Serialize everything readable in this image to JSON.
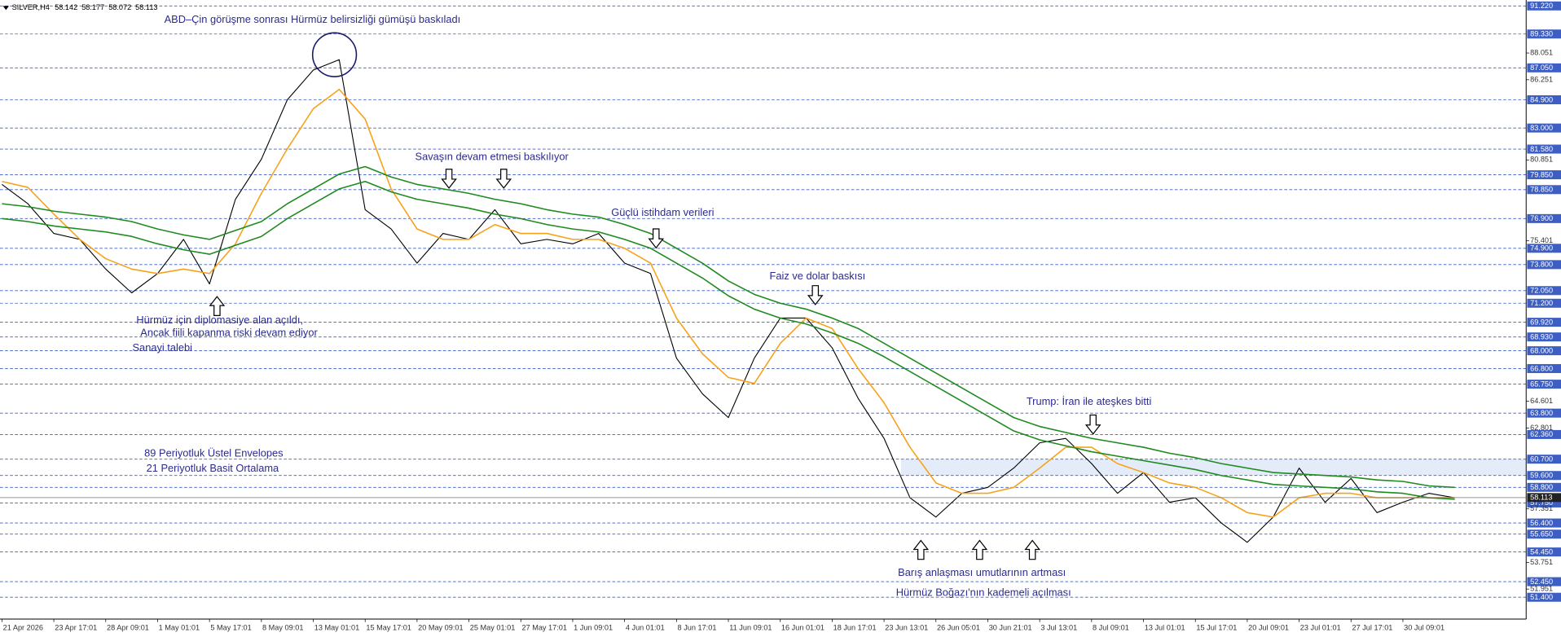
{
  "chart_data": {
    "type": "line",
    "symbol": "SILVER,H4",
    "ohlc": [
      58.142,
      58.177,
      58.072,
      58.113
    ],
    "x": [
      0,
      8,
      16,
      24,
      32,
      40,
      48,
      56,
      64,
      72,
      80,
      88,
      96,
      104,
      112,
      120,
      128,
      136,
      144,
      152,
      160,
      168,
      176,
      184,
      192,
      200,
      208,
      216,
      224,
      232,
      240,
      248,
      256,
      264,
      272,
      280,
      288,
      296,
      304,
      312,
      320,
      328,
      336,
      344,
      352,
      360,
      368,
      376,
      384,
      392,
      400,
      408,
      416,
      424,
      432,
      440,
      448
    ],
    "series": [
      {
        "color": "#000000",
        "values": [
          79.2,
          77.9,
          75.9,
          75.5,
          73.5,
          71.9,
          73.2,
          75.5,
          72.5,
          78.2,
          80.9,
          84.9,
          86.9,
          87.6,
          77.5,
          76.2,
          73.9,
          75.9,
          75.5,
          77.5,
          75.2,
          75.5,
          75.2,
          75.9,
          73.9,
          73.2,
          67.5,
          65.1,
          63.5,
          67.5,
          70.2,
          70.2,
          68.2,
          64.8,
          62.1,
          58.1,
          56.8,
          58.4,
          58.8,
          60.1,
          61.8,
          62.1,
          60.4,
          58.4,
          59.8,
          57.8,
          58.1,
          56.4,
          55.1,
          56.8,
          60.1,
          57.8,
          59.4,
          57.1,
          57.8,
          58.4,
          58.1
        ]
      },
      {
        "color": "#f7a21b",
        "values": [
          79.4,
          79.0,
          77.2,
          75.5,
          74.2,
          73.5,
          73.2,
          73.5,
          73.2,
          75.2,
          78.6,
          81.6,
          84.3,
          85.6,
          83.6,
          78.9,
          76.2,
          75.5,
          75.5,
          76.5,
          75.9,
          75.9,
          75.5,
          75.5,
          74.9,
          73.9,
          70.2,
          67.8,
          66.2,
          65.8,
          68.5,
          70.2,
          69.5,
          66.8,
          64.5,
          61.5,
          59.1,
          58.4,
          58.4,
          58.8,
          60.1,
          61.5,
          61.5,
          60.4,
          59.8,
          59.1,
          58.8,
          58.1,
          57.1,
          56.8,
          58.1,
          58.4,
          58.4,
          58.1,
          58.1,
          58.1,
          58.1
        ]
      },
      {
        "color": "#1f8a1f",
        "values": [
          77.9,
          77.7,
          77.4,
          77.2,
          77.0,
          76.7,
          76.2,
          75.8,
          75.5,
          76.1,
          76.7,
          77.9,
          78.9,
          79.9,
          80.4,
          79.7,
          79.2,
          78.9,
          78.6,
          78.2,
          77.9,
          77.5,
          77.2,
          77.0,
          76.5,
          75.9,
          74.9,
          73.9,
          72.7,
          71.8,
          71.2,
          70.8,
          70.2,
          69.5,
          68.5,
          67.5,
          66.5,
          65.5,
          64.5,
          63.5,
          62.9,
          62.5,
          62.1,
          61.8,
          61.5,
          61.1,
          60.8,
          60.4,
          60.1,
          59.8,
          59.7,
          59.6,
          59.5,
          59.3,
          59.2,
          58.9,
          58.8
        ]
      },
      {
        "color": "#1f8a1f",
        "values": [
          76.9,
          76.7,
          76.4,
          76.2,
          76.0,
          75.7,
          75.2,
          74.8,
          74.5,
          75.1,
          75.7,
          76.9,
          77.9,
          78.9,
          79.4,
          78.7,
          78.2,
          77.9,
          77.6,
          77.2,
          76.9,
          76.5,
          76.2,
          76.0,
          75.5,
          74.9,
          73.9,
          72.9,
          71.7,
          70.8,
          70.2,
          69.8,
          69.2,
          68.5,
          67.6,
          66.6,
          65.6,
          64.6,
          63.6,
          62.6,
          62.0,
          61.6,
          61.2,
          60.9,
          60.6,
          60.3,
          60.0,
          59.6,
          59.3,
          59.0,
          58.9,
          58.8,
          58.7,
          58.5,
          58.4,
          58.1,
          58.0
        ]
      }
    ],
    "xlim": [
      -0.6,
      470
    ],
    "ylim": [
      49.93,
      91.62
    ],
    "xticks": [
      {
        "value": 0,
        "label": "21 Apr 2026"
      },
      {
        "value": 16,
        "label": "23 Apr 17:01"
      },
      {
        "value": 32,
        "label": "28 Apr 09:01"
      },
      {
        "value": 48,
        "label": "1 May 01:01"
      },
      {
        "value": 64,
        "label": "5 May 17:01"
      },
      {
        "value": 80,
        "label": "8 May 09:01"
      },
      {
        "value": 96,
        "label": "13 May 01:01"
      },
      {
        "value": 112,
        "label": "15 May 17:01"
      },
      {
        "value": 128,
        "label": "20 May 09:01"
      },
      {
        "value": 144,
        "label": "25 May 01:01"
      },
      {
        "value": 160,
        "label": "27 May 17:01"
      },
      {
        "value": 176,
        "label": "1 Jun 09:01"
      },
      {
        "value": 192,
        "label": "4 Jun 01:01"
      },
      {
        "value": 208,
        "label": "8 Jun 17:01"
      },
      {
        "value": 224,
        "label": "11 Jun 09:01"
      },
      {
        "value": 240,
        "label": "16 Jun 01:01"
      },
      {
        "value": 256,
        "label": "18 Jun 17:01"
      },
      {
        "value": 272,
        "label": "23 Jun 13:01"
      },
      {
        "value": 288,
        "label": "26 Jun 05:01"
      },
      {
        "value": 304,
        "label": "30 Jun 21:01"
      },
      {
        "value": 320,
        "label": "3 Jul 13:01"
      },
      {
        "value": 336,
        "label": "8 Jul 09:01"
      },
      {
        "value": 352,
        "label": "13 Jul 01:01"
      },
      {
        "value": 368,
        "label": "15 Jul 17:01"
      },
      {
        "value": 384,
        "label": "20 Jul 09:01"
      },
      {
        "value": 400,
        "label": "23 Jul 01:01"
      },
      {
        "value": 416,
        "label": "27 Jul 17:01"
      },
      {
        "value": 432,
        "label": "30 Jul 09:01"
      }
    ],
    "yticks": [
      88.051,
      86.251,
      80.851,
      75.401,
      64.601,
      62.801,
      57.351,
      53.751,
      51.951
    ],
    "levels": [
      {
        "value": 91.22,
        "label": "91.220"
      },
      {
        "value": 89.33,
        "label": "89.330"
      },
      {
        "value": 87.05,
        "label": "87.050"
      },
      {
        "value": 84.9,
        "label": "84.900"
      },
      {
        "value": 83,
        "label": "83.000"
      },
      {
        "value": 81.58,
        "label": "81.580"
      },
      {
        "value": 79.85,
        "label": "79.850"
      },
      {
        "value": 78.85,
        "label": "78.850"
      },
      {
        "value": 76.9,
        "label": "76.900"
      },
      {
        "value": 74.9,
        "label": "74.900"
      },
      {
        "value": 73.8,
        "label": "73.800"
      },
      {
        "value": 72.05,
        "label": "72.050"
      },
      {
        "value": 71.2,
        "label": "71.200"
      },
      {
        "value": 69.92,
        "label": "69.920"
      },
      {
        "value": 68.93,
        "label": "68.930"
      },
      {
        "value": 68,
        "label": "68.000"
      },
      {
        "value": 66.8,
        "label": "66.800"
      },
      {
        "value": 65.75,
        "label": "65.750"
      },
      {
        "value": 63.8,
        "label": "63.800"
      },
      {
        "value": 62.36,
        "label": "62.360"
      },
      {
        "value": 60.7,
        "label": "60.700"
      },
      {
        "value": 59.6,
        "label": "59.600"
      },
      {
        "value": 58.8,
        "label": "58.800"
      },
      {
        "value": 57.75,
        "label": "57.750"
      },
      {
        "value": 56.4,
        "label": "56.400"
      },
      {
        "value": 55.65,
        "label": "55.650"
      },
      {
        "value": 54.45,
        "label": "54.450"
      },
      {
        "value": 52.45,
        "label": "52.450"
      },
      {
        "value": 51.4,
        "label": "51.400"
      }
    ],
    "level_color": "#3d5fc4",
    "zone": [
      59.6,
      60.7
    ],
    "zone_color": "#e4ecfa",
    "annotations": [
      "ABD–Çin görüşme sonrası Hürmüz belirsizliği gümüşü baskıladı",
      "Savaşın devam etmesi baskılıyor",
      "Güçlü istihdam verileri",
      "Faiz ve dolar baskısı",
      "Hürmüz için diplomasiye alan açıldı,",
      "Ancak fiili kapanma riski devam ediyor",
      "Sanayi talebi",
      "Trump: İran ile ateşkes bitti",
      "89 Periyotluk Üstel Envelopes",
      "21 Periyotluk Basit Ortalama",
      "Barış anlaşması umutlarının artması",
      "Hürmüz Boğazı'nın kademeli açılması"
    ]
  }
}
